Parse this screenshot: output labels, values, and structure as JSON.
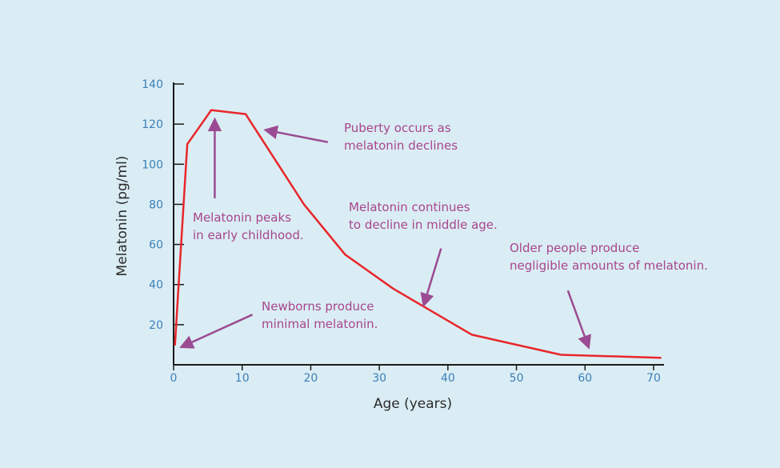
{
  "chart_data": {
    "type": "line",
    "title": "",
    "xlabel": "Age (years)",
    "ylabel": "Melatonin (pg/ml)",
    "xlim": [
      0,
      70
    ],
    "ylim": [
      0,
      140
    ],
    "xticks": [
      0,
      10,
      20,
      30,
      40,
      50,
      60,
      70
    ],
    "yticks": [
      20,
      40,
      60,
      80,
      100,
      120,
      140
    ],
    "grid": false,
    "series": [
      {
        "name": "Melatonin",
        "color": "#e8262b",
        "x": [
          0.2,
          2,
          5.5,
          10.5,
          19,
          25,
          32,
          37,
          43.5,
          56.5,
          71
        ],
        "y": [
          10,
          110,
          127,
          125,
          80,
          55,
          38,
          28,
          15,
          5,
          3.5
        ]
      }
    ],
    "annotations": [
      {
        "lines": [
          "Puberty occurs as",
          "melatonin declines"
        ],
        "arrow_from": [
          22.5,
          111
        ],
        "arrow_to": [
          13.5,
          117
        ]
      },
      {
        "lines": [
          "Melatonin peaks",
          "in early childhood."
        ],
        "arrow_from": [
          6,
          83
        ],
        "arrow_to": [
          6,
          122
        ]
      },
      {
        "lines": [
          "Melatonin continues",
          "to decline in middle age."
        ],
        "arrow_from": [
          39,
          58
        ],
        "arrow_to": [
          36.5,
          30
        ]
      },
      {
        "lines": [
          "Older people produce",
          "negligible amounts of melatonin."
        ],
        "arrow_from": [
          57.5,
          37
        ],
        "arrow_to": [
          60.5,
          9
        ]
      },
      {
        "lines": [
          "Newborns produce",
          "minimal melatonin."
        ],
        "arrow_from": [
          11.5,
          25
        ],
        "arrow_to": [
          1.2,
          9
        ]
      }
    ]
  }
}
